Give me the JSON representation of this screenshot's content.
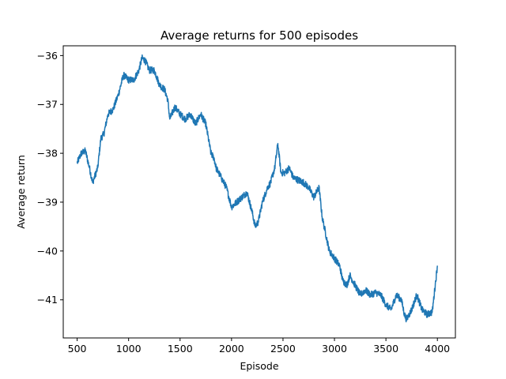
{
  "chart_data": {
    "type": "line",
    "title": "Average returns for 500 episodes",
    "xlabel": "Episode",
    "ylabel": "Average return",
    "xlim": [
      365,
      4175
    ],
    "ylim": [
      -41.78,
      -35.8
    ],
    "xticks": [
      500,
      1000,
      1500,
      2000,
      2500,
      3000,
      3500,
      4000
    ],
    "yticks": [
      -36,
      -37,
      -38,
      -39,
      -40,
      -41
    ],
    "xtick_labels": [
      "500",
      "1000",
      "1500",
      "2000",
      "2500",
      "3000",
      "3500",
      "4000"
    ],
    "ytick_labels": [
      "−36",
      "−37",
      "−38",
      "−39",
      "−40",
      "−41"
    ],
    "grid": false,
    "legend": "none",
    "series": [
      {
        "color": "#1f77b4",
        "x": [
          500,
          540,
          580,
          620,
          650,
          700,
          730,
          760,
          800,
          850,
          900,
          950,
          1000,
          1050,
          1100,
          1130,
          1160,
          1200,
          1250,
          1300,
          1350,
          1380,
          1400,
          1450,
          1500,
          1550,
          1600,
          1650,
          1700,
          1750,
          1800,
          1830,
          1850,
          1900,
          1950,
          2000,
          2050,
          2100,
          2150,
          2200,
          2230,
          2260,
          2300,
          2350,
          2380,
          2420,
          2450,
          2480,
          2520,
          2560,
          2600,
          2650,
          2700,
          2750,
          2800,
          2850,
          2880,
          2900,
          2950,
          3000,
          3050,
          3080,
          3120,
          3150,
          3200,
          3250,
          3300,
          3350,
          3400,
          3450,
          3500,
          3550,
          3600,
          3650,
          3680,
          3700,
          3750,
          3800,
          3850,
          3900,
          3950,
          4000
        ],
        "y": [
          -38.2,
          -38.0,
          -37.95,
          -38.3,
          -38.6,
          -38.3,
          -37.7,
          -37.6,
          -37.2,
          -37.1,
          -36.8,
          -36.4,
          -36.5,
          -36.5,
          -36.3,
          -36.05,
          -36.1,
          -36.3,
          -36.3,
          -36.6,
          -36.7,
          -36.9,
          -37.3,
          -37.05,
          -37.2,
          -37.3,
          -37.2,
          -37.4,
          -37.2,
          -37.4,
          -38.0,
          -38.1,
          -38.3,
          -38.5,
          -38.7,
          -39.1,
          -39.0,
          -38.9,
          -38.8,
          -39.2,
          -39.5,
          -39.4,
          -39.0,
          -38.7,
          -38.6,
          -38.3,
          -37.8,
          -38.4,
          -38.4,
          -38.3,
          -38.5,
          -38.55,
          -38.6,
          -38.7,
          -38.9,
          -38.7,
          -39.3,
          -39.5,
          -40.0,
          -40.15,
          -40.3,
          -40.6,
          -40.7,
          -40.5,
          -40.7,
          -40.9,
          -40.8,
          -40.9,
          -40.85,
          -40.9,
          -41.1,
          -41.2,
          -40.9,
          -41.0,
          -41.3,
          -41.4,
          -41.2,
          -40.9,
          -41.2,
          -41.3,
          -41.25,
          -40.3
        ]
      }
    ]
  }
}
